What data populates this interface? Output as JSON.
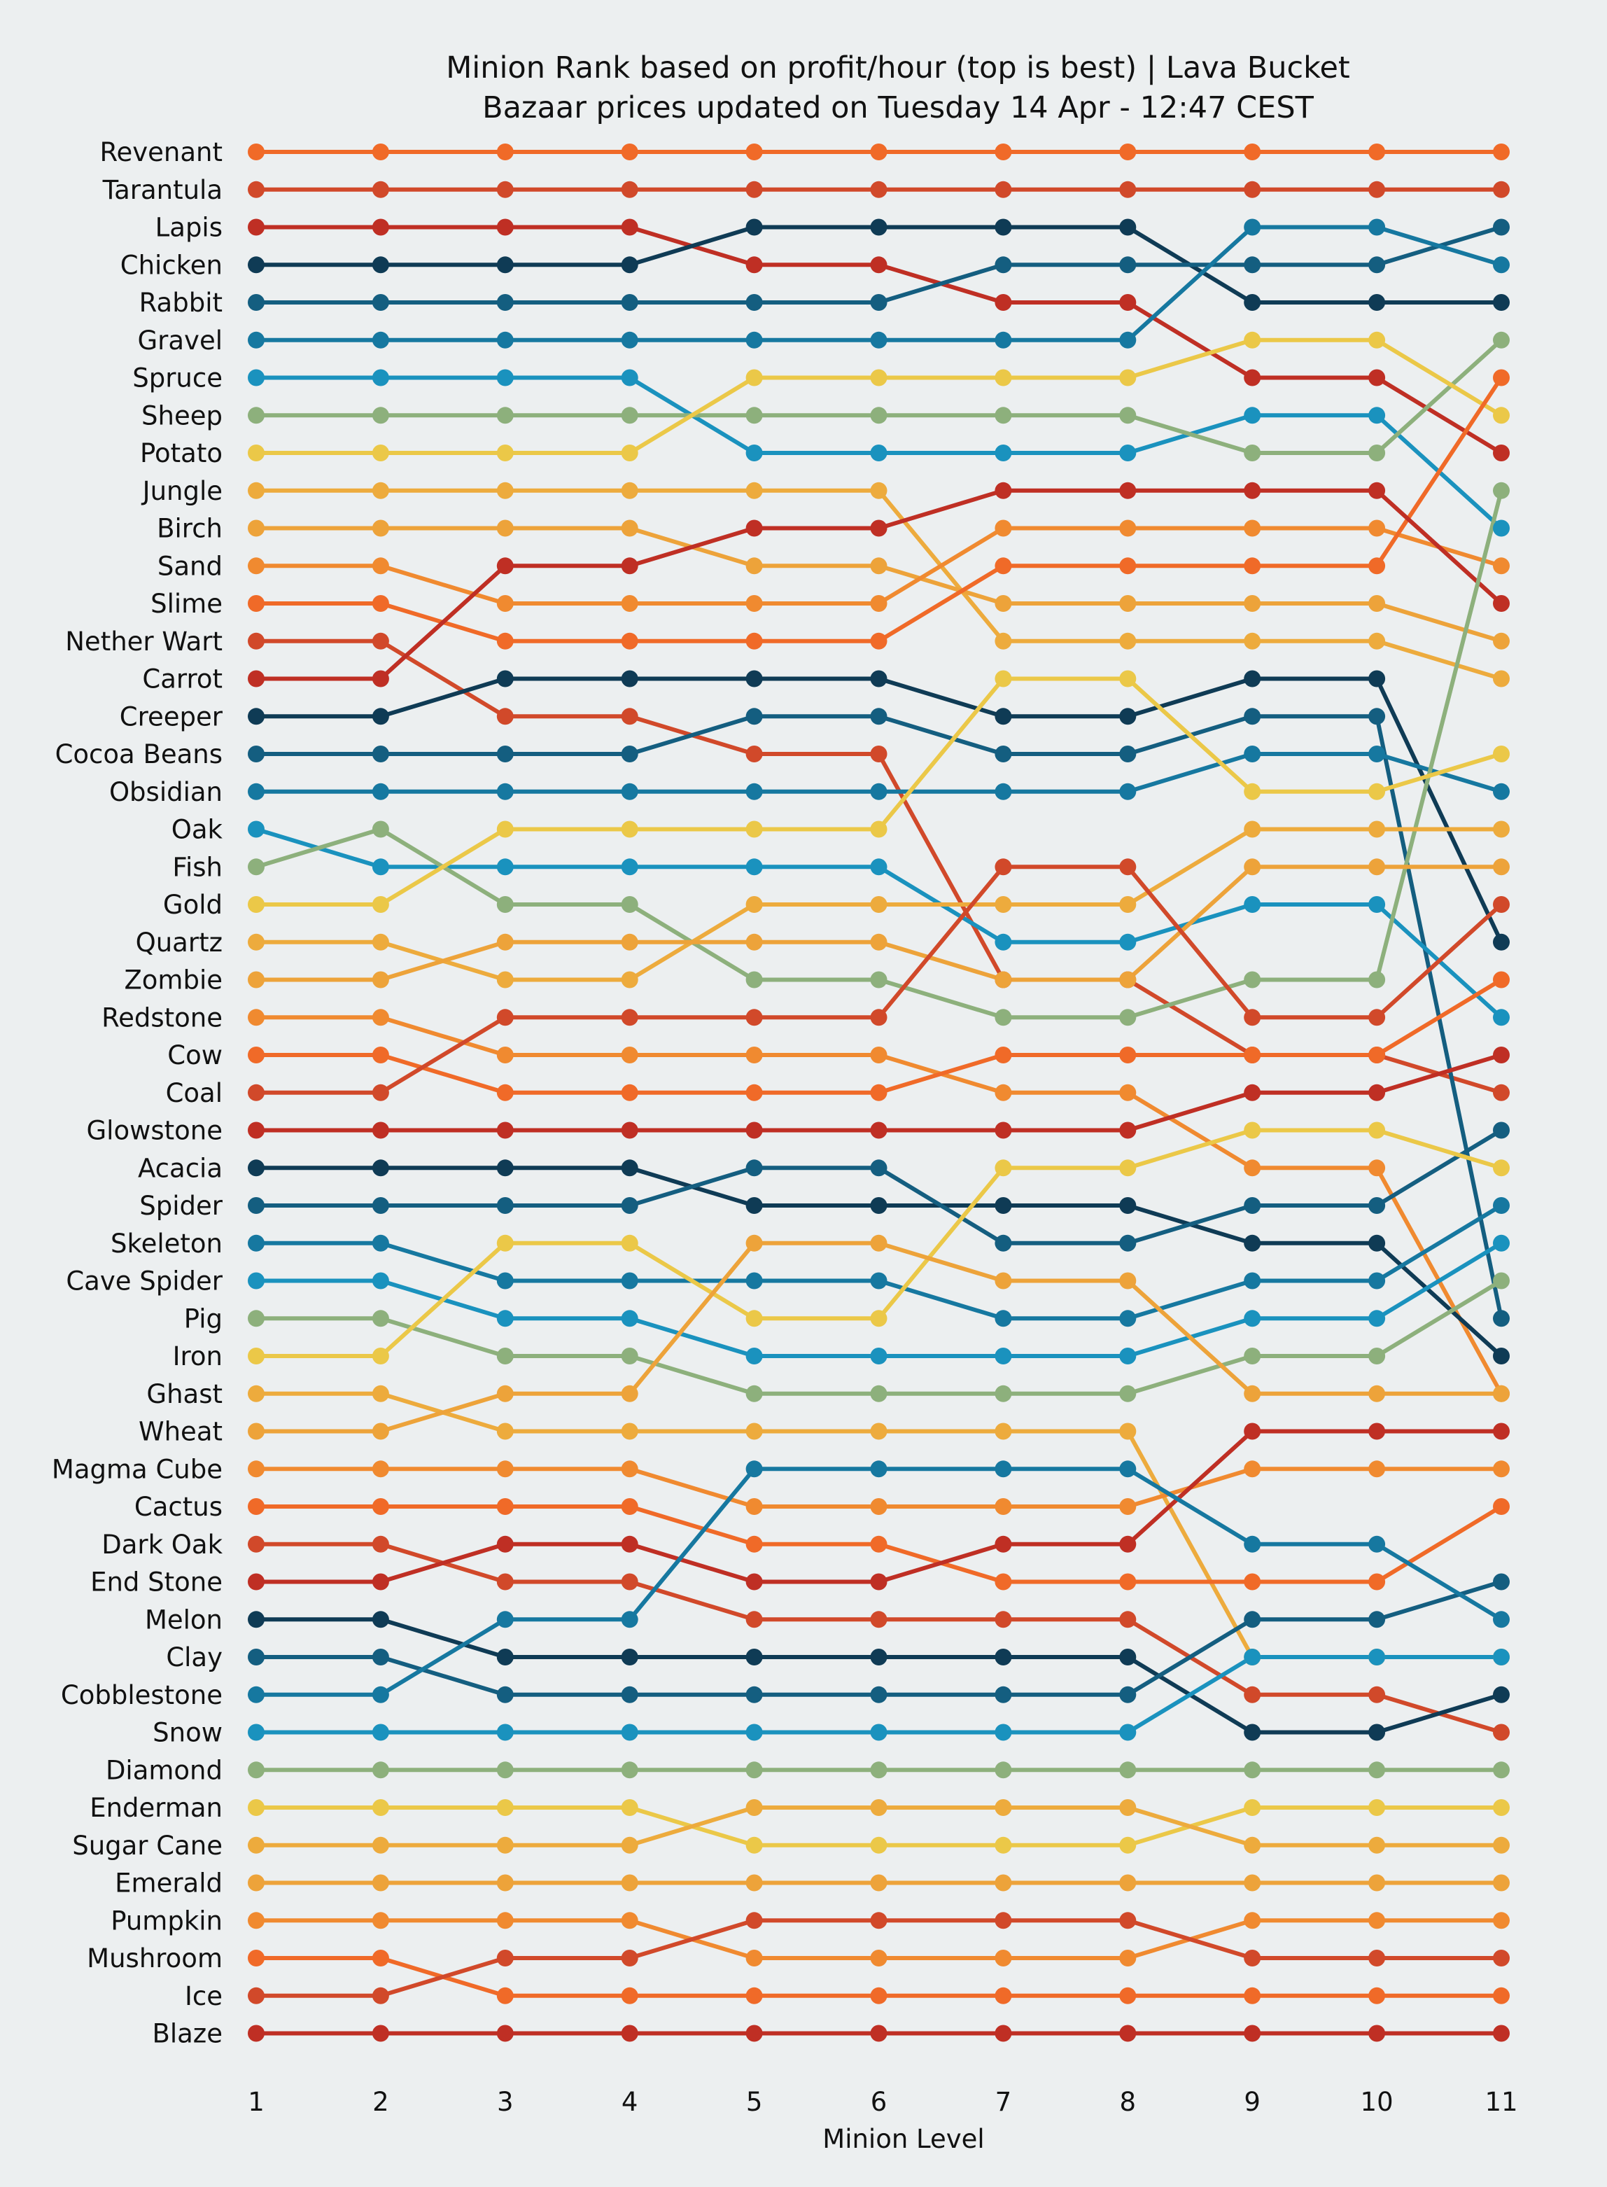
{
  "chart_data": {
    "type": "line",
    "title": "Minion Rank based on profit/hour (top is best) | Lava Bucket",
    "subtitle": "Bazaar prices updated on Tuesday 14 Apr - 12:47  CEST",
    "xlabel": "Minion Level",
    "ylabel": "",
    "x": [
      1,
      2,
      3,
      4,
      5,
      6,
      7,
      8,
      9,
      10,
      11
    ],
    "xlim": [
      1,
      11
    ],
    "y_is_rank": true,
    "grid": false,
    "legend": "none",
    "labels_by_level1_rank": [
      "Revenant",
      "Tarantula",
      "Lapis",
      "Chicken",
      "Rabbit",
      "Gravel",
      "Spruce",
      "Sheep",
      "Potato",
      "Jungle",
      "Birch",
      "Sand",
      "Slime",
      "Nether Wart",
      "Carrot",
      "Creeper",
      "Cocoa Beans",
      "Obsidian",
      "Oak",
      "Fish",
      "Gold",
      "Quartz",
      "Zombie",
      "Redstone",
      "Cow",
      "Coal",
      "Glowstone",
      "Acacia",
      "Spider",
      "Skeleton",
      "Cave Spider",
      "Pig",
      "Iron",
      "Ghast",
      "Wheat",
      "Magma Cube",
      "Cactus",
      "Dark Oak",
      "End Stone",
      "Melon",
      "Clay",
      "Cobblestone",
      "Snow",
      "Diamond",
      "Enderman",
      "Sugar Cane",
      "Emerald",
      "Pumpkin",
      "Mushroom",
      "Ice",
      "Blaze"
    ],
    "series": [
      {
        "values": [
          1,
          1,
          1,
          1,
          1,
          1,
          1,
          1,
          1,
          1,
          1
        ],
        "color": "#F06A28"
      },
      {
        "values": [
          2,
          2,
          2,
          2,
          2,
          2,
          2,
          2,
          2,
          2,
          2
        ],
        "color": "#D1492A"
      },
      {
        "values": [
          3,
          3,
          3,
          3,
          4,
          4,
          5,
          5,
          7,
          7,
          9
        ],
        "color": "#BF2F24"
      },
      {
        "values": [
          4,
          4,
          4,
          4,
          3,
          3,
          3,
          3,
          5,
          5,
          5
        ],
        "color": "#0F3B55"
      },
      {
        "values": [
          5,
          5,
          5,
          5,
          5,
          5,
          4,
          4,
          4,
          4,
          3
        ],
        "color": "#145E80"
      },
      {
        "values": [
          6,
          6,
          6,
          6,
          6,
          6,
          6,
          6,
          3,
          3,
          4
        ],
        "color": "#1678A0"
      },
      {
        "values": [
          7,
          7,
          7,
          7,
          9,
          9,
          9,
          9,
          8,
          8,
          11
        ],
        "color": "#1A92BE"
      },
      {
        "values": [
          8,
          8,
          8,
          8,
          8,
          8,
          8,
          8,
          9,
          9,
          6
        ],
        "color": "#8DB07C"
      },
      {
        "values": [
          9,
          9,
          9,
          9,
          7,
          7,
          7,
          7,
          6,
          6,
          8
        ],
        "color": "#EBC848"
      },
      {
        "values": [
          10,
          10,
          10,
          10,
          10,
          10,
          14,
          14,
          14,
          14,
          15
        ],
        "color": "#EDAB3D"
      },
      {
        "values": [
          11,
          11,
          11,
          11,
          12,
          12,
          13,
          13,
          13,
          13,
          14
        ],
        "color": "#EDA33A"
      },
      {
        "values": [
          12,
          12,
          13,
          13,
          13,
          13,
          11,
          11,
          11,
          11,
          12
        ],
        "color": "#F08A30"
      },
      {
        "values": [
          13,
          13,
          14,
          14,
          14,
          14,
          12,
          12,
          12,
          12,
          7
        ],
        "color": "#F06A28"
      },
      {
        "values": [
          14,
          14,
          16,
          16,
          17,
          17,
          23,
          23,
          25,
          25,
          26
        ],
        "color": "#D1492A"
      },
      {
        "values": [
          15,
          15,
          12,
          12,
          11,
          11,
          10,
          10,
          10,
          10,
          13
        ],
        "color": "#BF2F24"
      },
      {
        "values": [
          16,
          16,
          15,
          15,
          15,
          15,
          16,
          16,
          15,
          15,
          22
        ],
        "color": "#0F3B55"
      },
      {
        "values": [
          17,
          17,
          17,
          17,
          16,
          16,
          17,
          17,
          16,
          16,
          32
        ],
        "color": "#145E80"
      },
      {
        "values": [
          18,
          18,
          18,
          18,
          18,
          18,
          18,
          18,
          17,
          17,
          18
        ],
        "color": "#1678A0"
      },
      {
        "values": [
          19,
          20,
          20,
          20,
          20,
          20,
          22,
          22,
          21,
          21,
          24
        ],
        "color": "#1A92BE"
      },
      {
        "values": [
          20,
          19,
          21,
          21,
          23,
          23,
          24,
          24,
          23,
          23,
          10
        ],
        "color": "#8DB07C"
      },
      {
        "values": [
          21,
          21,
          19,
          19,
          19,
          19,
          15,
          15,
          18,
          18,
          17
        ],
        "color": "#EBC848"
      },
      {
        "values": [
          22,
          22,
          23,
          23,
          21,
          21,
          21,
          21,
          19,
          19,
          19
        ],
        "color": "#EDAB3D"
      },
      {
        "values": [
          23,
          23,
          22,
          22,
          22,
          22,
          23,
          23,
          20,
          20,
          20
        ],
        "color": "#EDA33A"
      },
      {
        "values": [
          24,
          24,
          25,
          25,
          25,
          25,
          26,
          26,
          28,
          28,
          34
        ],
        "color": "#F08A30"
      },
      {
        "values": [
          25,
          25,
          26,
          26,
          26,
          26,
          25,
          25,
          25,
          25,
          23
        ],
        "color": "#F06A28"
      },
      {
        "values": [
          26,
          26,
          24,
          24,
          24,
          24,
          20,
          20,
          24,
          24,
          21
        ],
        "color": "#D1492A"
      },
      {
        "values": [
          27,
          27,
          27,
          27,
          27,
          27,
          27,
          27,
          26,
          26,
          25
        ],
        "color": "#BF2F24"
      },
      {
        "values": [
          28,
          28,
          28,
          28,
          29,
          29,
          29,
          29,
          30,
          30,
          33
        ],
        "color": "#0F3B55"
      },
      {
        "values": [
          29,
          29,
          29,
          29,
          28,
          28,
          30,
          30,
          29,
          29,
          27
        ],
        "color": "#145E80"
      },
      {
        "values": [
          30,
          30,
          31,
          31,
          31,
          31,
          32,
          32,
          31,
          31,
          29
        ],
        "color": "#1678A0"
      },
      {
        "values": [
          31,
          31,
          32,
          32,
          33,
          33,
          33,
          33,
          32,
          32,
          30
        ],
        "color": "#1A92BE"
      },
      {
        "values": [
          32,
          32,
          33,
          33,
          34,
          34,
          34,
          34,
          33,
          33,
          31
        ],
        "color": "#8DB07C"
      },
      {
        "values": [
          33,
          33,
          30,
          30,
          32,
          32,
          28,
          28,
          27,
          27,
          28
        ],
        "color": "#EBC848"
      },
      {
        "values": [
          34,
          34,
          35,
          35,
          35,
          35,
          35,
          35,
          41,
          41,
          41
        ],
        "color": "#EDAB3D"
      },
      {
        "values": [
          35,
          35,
          34,
          34,
          30,
          30,
          31,
          31,
          34,
          34,
          34
        ],
        "color": "#EDA33A"
      },
      {
        "values": [
          36,
          36,
          36,
          36,
          37,
          37,
          37,
          37,
          36,
          36,
          36
        ],
        "color": "#F08A30"
      },
      {
        "values": [
          37,
          37,
          37,
          37,
          38,
          38,
          39,
          39,
          39,
          39,
          37
        ],
        "color": "#F06A28"
      },
      {
        "values": [
          38,
          38,
          39,
          39,
          40,
          40,
          40,
          40,
          42,
          42,
          43
        ],
        "color": "#D1492A"
      },
      {
        "values": [
          39,
          39,
          38,
          38,
          39,
          39,
          38,
          38,
          35,
          35,
          35
        ],
        "color": "#BF2F24"
      },
      {
        "values": [
          40,
          40,
          41,
          41,
          41,
          41,
          41,
          41,
          43,
          43,
          42
        ],
        "color": "#0F3B55"
      },
      {
        "values": [
          41,
          41,
          42,
          42,
          42,
          42,
          42,
          42,
          40,
          40,
          39
        ],
        "color": "#145E80"
      },
      {
        "values": [
          42,
          42,
          40,
          40,
          36,
          36,
          36,
          36,
          38,
          38,
          40
        ],
        "color": "#1678A0"
      },
      {
        "values": [
          43,
          43,
          43,
          43,
          43,
          43,
          43,
          43,
          41,
          41,
          41
        ],
        "color": "#1A92BE"
      },
      {
        "values": [
          44,
          44,
          44,
          44,
          44,
          44,
          44,
          44,
          44,
          44,
          44
        ],
        "color": "#8DB07C"
      },
      {
        "values": [
          45,
          45,
          45,
          45,
          46,
          46,
          46,
          46,
          45,
          45,
          45
        ],
        "color": "#EBC848"
      },
      {
        "values": [
          46,
          46,
          46,
          46,
          45,
          45,
          45,
          45,
          46,
          46,
          46
        ],
        "color": "#EDAB3D"
      },
      {
        "values": [
          47,
          47,
          47,
          47,
          47,
          47,
          47,
          47,
          47,
          47,
          47
        ],
        "color": "#EDA33A"
      },
      {
        "values": [
          48,
          48,
          48,
          48,
          49,
          49,
          49,
          49,
          48,
          48,
          48
        ],
        "color": "#F08A30"
      },
      {
        "values": [
          49,
          49,
          50,
          50,
          50,
          50,
          50,
          50,
          50,
          50,
          50
        ],
        "color": "#F06A28"
      },
      {
        "values": [
          50,
          50,
          49,
          49,
          48,
          48,
          48,
          48,
          49,
          49,
          49
        ],
        "color": "#D1492A"
      },
      {
        "values": [
          51,
          51,
          51,
          51,
          51,
          51,
          51,
          51,
          51,
          51,
          51
        ],
        "color": "#BF2F24"
      }
    ]
  }
}
